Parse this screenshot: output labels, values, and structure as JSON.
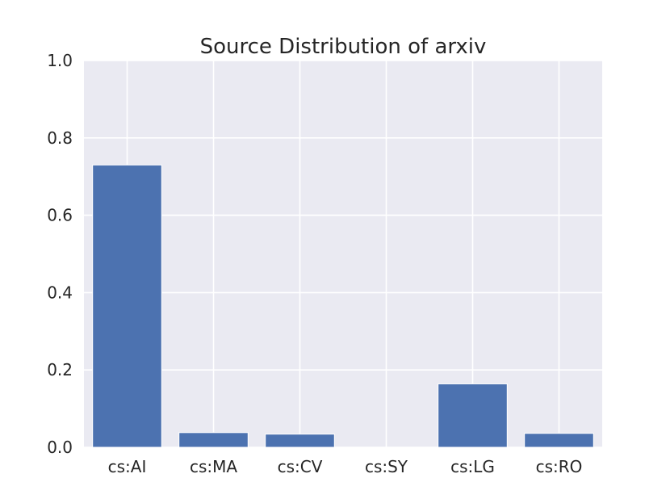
{
  "chart_data": {
    "type": "bar",
    "title": "Source Distribution of arxiv",
    "xlabel": "",
    "ylabel": "",
    "categories": [
      "cs:AI",
      "cs:MA",
      "cs:CV",
      "cs:SY",
      "cs:LG",
      "cs:RO"
    ],
    "values": [
      0.73,
      0.038,
      0.034,
      0.0,
      0.164,
      0.036
    ],
    "ylim": [
      0,
      1.0
    ],
    "yticks": [
      "0.0",
      "0.2",
      "0.4",
      "0.6",
      "0.8",
      "1.0"
    ],
    "grid": true,
    "legend": "none",
    "colors": {
      "bar": "#4c72b0",
      "plot_background": "#eaeaf2",
      "grid": "#ffffff",
      "text": "#262626"
    }
  }
}
